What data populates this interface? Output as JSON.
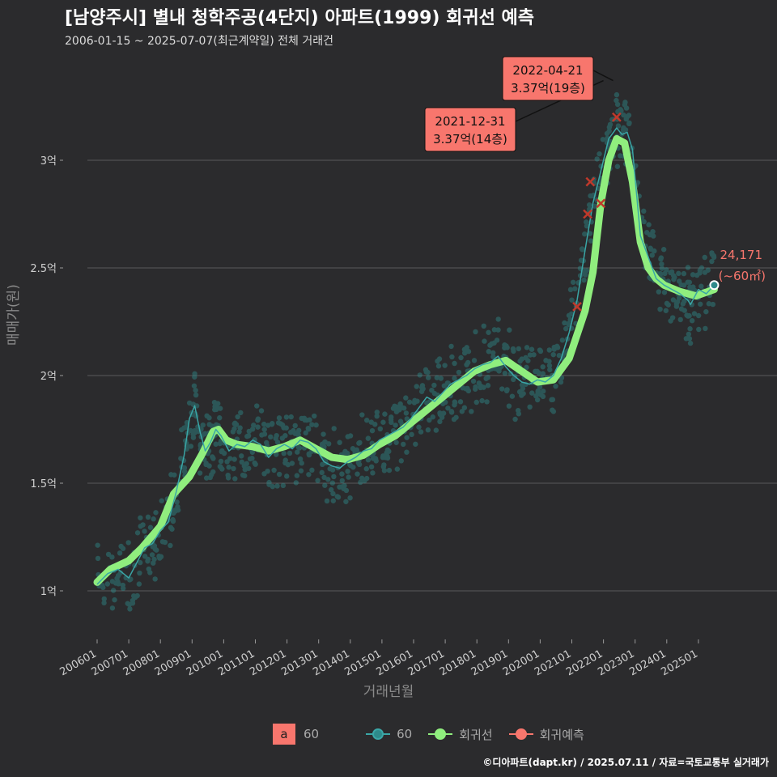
{
  "title": "[남양주시] 별내 청학주공(4단지) 아파트(1999) 회귀선 예측",
  "subtitle": "2006-01-15 ~ 2025-07-07(최근계약일) 전체 거래건",
  "caption": "©디아파트(dapt.kr) / 2025.07.11 / 자료=국토교통부 실거래가",
  "colors": {
    "background": "#2b2b2d",
    "trade_points": "#2e8b8b",
    "trade_line": "#3aa6a6",
    "regression": "#90ee7e",
    "prediction": "#f8766d"
  },
  "legend": {
    "size_key_glyph": "a",
    "size_key_label": "60",
    "series_60_label": "60",
    "regression_label": "회귀선",
    "prediction_label": "회귀예측"
  },
  "chart_data": {
    "type": "scatter",
    "xlabel": "거래년월",
    "ylabel": "매매가(원)",
    "ylim": [
      0.8,
      3.5
    ],
    "y_unit": "억",
    "y_ticks": [
      {
        "value": 1.0,
        "label": "1억"
      },
      {
        "value": 1.5,
        "label": "1.5억"
      },
      {
        "value": 2.0,
        "label": "2억"
      },
      {
        "value": 2.5,
        "label": "2.5억"
      },
      {
        "value": 3.0,
        "label": "3억"
      }
    ],
    "x_range": [
      "2006-01-01",
      "2025-12-01"
    ],
    "x_ticks": [
      "200601",
      "200701",
      "200801",
      "200901",
      "201001",
      "201101",
      "201201",
      "201301",
      "201401",
      "201501",
      "201601",
      "201701",
      "201801",
      "201901",
      "202001",
      "202101",
      "202201",
      "202301",
      "202401",
      "202501"
    ],
    "grid": "horizontal",
    "legend_position": "bottom",
    "series": [
      {
        "name": "60",
        "kind": "monthly-average-line",
        "points": [
          [
            "2006-01",
            1.03
          ],
          [
            "2006-05",
            1.08
          ],
          [
            "2006-09",
            1.1
          ],
          [
            "2007-01",
            1.06
          ],
          [
            "2007-04",
            1.13
          ],
          [
            "2007-07",
            1.2
          ],
          [
            "2007-10",
            1.22
          ],
          [
            "2008-01",
            1.28
          ],
          [
            "2008-04",
            1.32
          ],
          [
            "2008-07",
            1.46
          ],
          [
            "2008-10",
            1.63
          ],
          [
            "2008-12",
            1.8
          ],
          [
            "2009-02",
            1.86
          ],
          [
            "2009-04",
            1.74
          ],
          [
            "2009-06",
            1.65
          ],
          [
            "2009-08",
            1.69
          ],
          [
            "2009-10",
            1.75
          ],
          [
            "2009-12",
            1.72
          ],
          [
            "2010-03",
            1.65
          ],
          [
            "2010-06",
            1.68
          ],
          [
            "2010-09",
            1.67
          ],
          [
            "2010-12",
            1.7
          ],
          [
            "2011-03",
            1.68
          ],
          [
            "2011-06",
            1.62
          ],
          [
            "2011-09",
            1.66
          ],
          [
            "2011-12",
            1.68
          ],
          [
            "2012-03",
            1.66
          ],
          [
            "2012-06",
            1.7
          ],
          [
            "2012-09",
            1.69
          ],
          [
            "2012-12",
            1.66
          ],
          [
            "2013-03",
            1.6
          ],
          [
            "2013-06",
            1.58
          ],
          [
            "2013-09",
            1.57
          ],
          [
            "2013-12",
            1.6
          ],
          [
            "2014-03",
            1.62
          ],
          [
            "2014-06",
            1.65
          ],
          [
            "2014-09",
            1.66
          ],
          [
            "2014-12",
            1.7
          ],
          [
            "2015-03",
            1.72
          ],
          [
            "2015-06",
            1.74
          ],
          [
            "2015-09",
            1.76
          ],
          [
            "2015-12",
            1.8
          ],
          [
            "2016-03",
            1.85
          ],
          [
            "2016-06",
            1.9
          ],
          [
            "2016-09",
            1.88
          ],
          [
            "2016-12",
            1.92
          ],
          [
            "2017-03",
            1.96
          ],
          [
            "2017-06",
            1.98
          ],
          [
            "2017-09",
            2.0
          ],
          [
            "2017-12",
            2.03
          ],
          [
            "2018-03",
            2.05
          ],
          [
            "2018-06",
            2.06
          ],
          [
            "2018-09",
            2.09
          ],
          [
            "2018-12",
            2.04
          ],
          [
            "2019-03",
            2.0
          ],
          [
            "2019-06",
            1.97
          ],
          [
            "2019-09",
            1.96
          ],
          [
            "2019-12",
            1.98
          ],
          [
            "2020-03",
            1.97
          ],
          [
            "2020-06",
            2.0
          ],
          [
            "2020-09",
            2.08
          ],
          [
            "2020-12",
            2.2
          ],
          [
            "2021-03",
            2.35
          ],
          [
            "2021-06",
            2.58
          ],
          [
            "2021-09",
            2.8
          ],
          [
            "2021-12",
            2.95
          ],
          [
            "2022-03",
            3.1
          ],
          [
            "2022-06",
            3.15
          ],
          [
            "2022-08",
            3.12
          ],
          [
            "2022-10",
            3.13
          ],
          [
            "2022-12",
            3.05
          ],
          [
            "2023-03",
            2.65
          ],
          [
            "2023-06",
            2.55
          ],
          [
            "2023-09",
            2.45
          ],
          [
            "2023-12",
            2.42
          ],
          [
            "2024-03",
            2.4
          ],
          [
            "2024-06",
            2.38
          ],
          [
            "2024-09",
            2.35
          ],
          [
            "2024-10",
            2.33
          ],
          [
            "2025-01",
            2.4
          ],
          [
            "2025-04",
            2.38
          ],
          [
            "2025-07",
            2.42
          ]
        ]
      },
      {
        "name": "회귀선",
        "kind": "regression-line",
        "points": [
          [
            "2006-01",
            1.04
          ],
          [
            "2006-06",
            1.1
          ],
          [
            "2007-01",
            1.14
          ],
          [
            "2007-06",
            1.2
          ],
          [
            "2008-01",
            1.3
          ],
          [
            "2008-06",
            1.45
          ],
          [
            "2008-12",
            1.53
          ],
          [
            "2009-05",
            1.64
          ],
          [
            "2009-09",
            1.74
          ],
          [
            "2009-11",
            1.75
          ],
          [
            "2010-02",
            1.7
          ],
          [
            "2010-06",
            1.68
          ],
          [
            "2010-12",
            1.67
          ],
          [
            "2011-06",
            1.65
          ],
          [
            "2011-12",
            1.67
          ],
          [
            "2012-06",
            1.7
          ],
          [
            "2012-12",
            1.66
          ],
          [
            "2013-06",
            1.62
          ],
          [
            "2013-12",
            1.61
          ],
          [
            "2014-06",
            1.63
          ],
          [
            "2014-12",
            1.68
          ],
          [
            "2015-06",
            1.72
          ],
          [
            "2015-12",
            1.78
          ],
          [
            "2016-06",
            1.84
          ],
          [
            "2016-12",
            1.9
          ],
          [
            "2017-06",
            1.96
          ],
          [
            "2017-12",
            2.02
          ],
          [
            "2018-06",
            2.05
          ],
          [
            "2018-12",
            2.07
          ],
          [
            "2019-06",
            2.02
          ],
          [
            "2019-12",
            1.97
          ],
          [
            "2020-06",
            1.98
          ],
          [
            "2020-12",
            2.08
          ],
          [
            "2021-06",
            2.3
          ],
          [
            "2021-09",
            2.48
          ],
          [
            "2021-12",
            2.8
          ],
          [
            "2022-03",
            3.0
          ],
          [
            "2022-06",
            3.1
          ],
          [
            "2022-09",
            3.08
          ],
          [
            "2022-12",
            2.9
          ],
          [
            "2023-03",
            2.62
          ],
          [
            "2023-06",
            2.5
          ],
          [
            "2023-09",
            2.45
          ],
          [
            "2023-12",
            2.42
          ],
          [
            "2024-06",
            2.39
          ],
          [
            "2024-12",
            2.37
          ],
          [
            "2025-07",
            2.4
          ]
        ]
      },
      {
        "name": "회귀예측",
        "kind": "prediction-markers",
        "points": [
          [
            "2021-03",
            2.32
          ],
          [
            "2021-07",
            2.75
          ],
          [
            "2021-08",
            2.9
          ],
          [
            "2021-12",
            2.8
          ],
          [
            "2022-06",
            3.2
          ]
        ]
      }
    ],
    "annotations": [
      {
        "date": "2021-12-31",
        "value": 3.37,
        "label_line1": "2021-12-31",
        "label_line2": "3.37억(14층)"
      },
      {
        "date": "2022-04-21",
        "value": 3.37,
        "label_line1": "2022-04-21",
        "label_line2": "3.37억(19층)"
      }
    ],
    "latest": {
      "date": "2025-07",
      "value": 2.42,
      "label_line1": "24,171",
      "label_line2": "(~60㎡)"
    }
  }
}
